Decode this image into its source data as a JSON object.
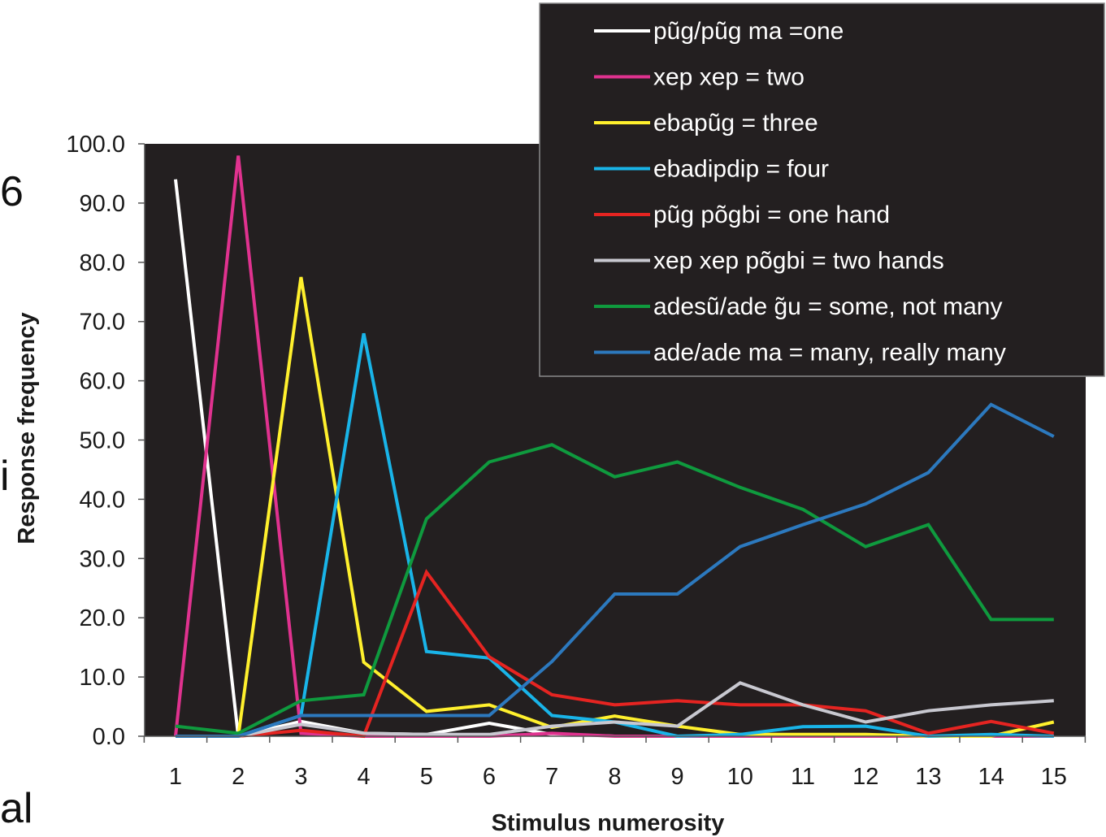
{
  "side_fragments": [
    "6",
    "i",
    "al"
  ],
  "chart_data": {
    "type": "line",
    "xlabel": "Stimulus numerosity",
    "ylabel": "Response frequency",
    "x": [
      1,
      2,
      3,
      4,
      5,
      6,
      7,
      8,
      9,
      10,
      11,
      12,
      13,
      14,
      15
    ],
    "ylim": [
      0,
      100
    ],
    "yticks": [
      "0.0",
      "10.0",
      "20.0",
      "30.0",
      "40.0",
      "50.0",
      "60.0",
      "70.0",
      "80.0",
      "90.0",
      "100.0"
    ],
    "grid": false,
    "background": "#231f20",
    "legend_position": "top-right",
    "series": [
      {
        "name": "pũg/pũg ma =one",
        "color": "#ffffff",
        "values": [
          94,
          0,
          2.5,
          0.5,
          0.3,
          2.2,
          0.3,
          0,
          0,
          0,
          0,
          0,
          0,
          0,
          0
        ]
      },
      {
        "name": "xep xep = two",
        "color": "#e0328f",
        "values": [
          0,
          98,
          0.5,
          0,
          0,
          0,
          0.5,
          0,
          0,
          0,
          0,
          0,
          0,
          0,
          0
        ]
      },
      {
        "name": "ebapũg = three",
        "color": "#fff02d",
        "values": [
          0,
          0,
          77.5,
          12.5,
          4.2,
          5.3,
          1.5,
          3.4,
          1.7,
          0.3,
          0.3,
          0.3,
          0,
          0,
          2.4
        ]
      },
      {
        "name": "ebadipdip = four",
        "color": "#19b4e8",
        "values": [
          0,
          0,
          3.5,
          68,
          14.3,
          13.2,
          3.5,
          2.4,
          0,
          0.3,
          1.6,
          1.7,
          0,
          0.3,
          0
        ]
      },
      {
        "name": "pũg põgbi = one hand",
        "color": "#e52421",
        "values": [
          0,
          0,
          1,
          0,
          27.7,
          13.4,
          7,
          5.3,
          6,
          5.3,
          5.3,
          4.3,
          0.5,
          2.5,
          0.5
        ]
      },
      {
        "name": "xep xep põgbi = two hands",
        "color": "#c8c8d0",
        "values": [
          0,
          0,
          2,
          0.5,
          0.3,
          0.3,
          1.7,
          2.4,
          1.7,
          9,
          5.3,
          2.4,
          4.3,
          5.3,
          6
        ]
      },
      {
        "name": "adesũ/ade g̃u = some, not many",
        "color": "#0f9a3e",
        "values": [
          1.7,
          0.5,
          6,
          7,
          36.7,
          46.3,
          49.2,
          43.8,
          46.3,
          42,
          38.3,
          32,
          35.7,
          19.7,
          19.7
        ]
      },
      {
        "name": "ade/ade ma = many, really many",
        "color": "#2c79be",
        "values": [
          0,
          0,
          3.5,
          3.5,
          3.5,
          3.5,
          12.6,
          24,
          24,
          32,
          35.7,
          39.2,
          44.5,
          56,
          50.6
        ]
      }
    ]
  }
}
